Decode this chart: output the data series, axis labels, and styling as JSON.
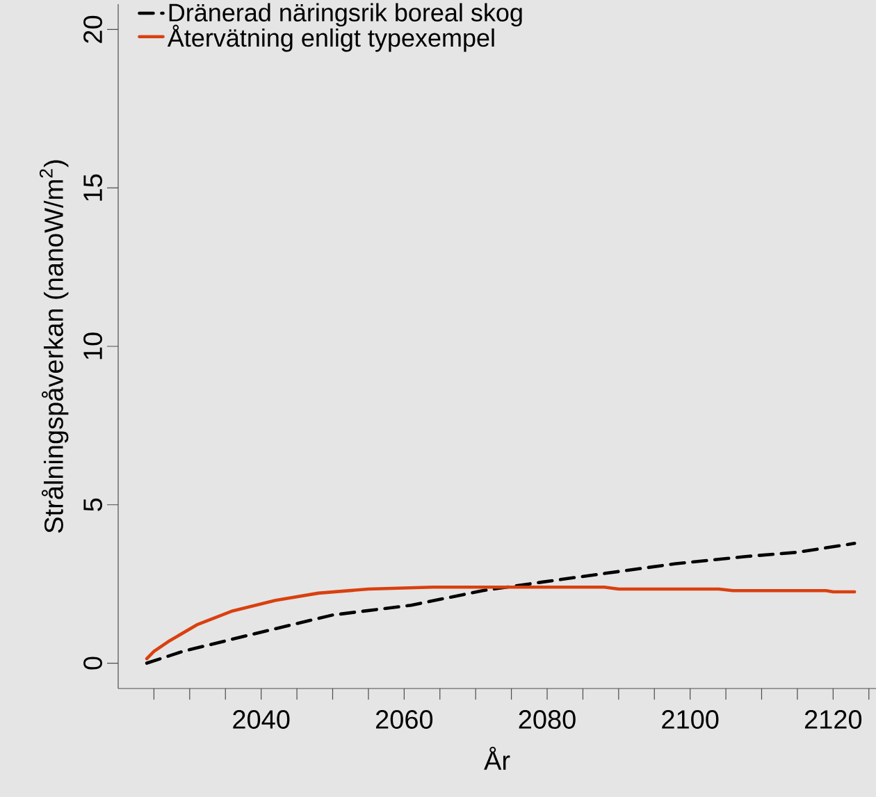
{
  "chart_data": {
    "type": "line",
    "xlabel": "År",
    "ylabel": "Strålningspåverkan (nanoW/m$^{2}$)",
    "xlim": [
      2020,
      2126
    ],
    "ylim": [
      -0.8,
      20.8
    ],
    "xticks": [
      {
        "value": 2025,
        "label": null
      },
      {
        "value": 2030,
        "label": null
      },
      {
        "value": 2035,
        "label": null
      },
      2040,
      {
        "value": 2045,
        "label": null
      },
      {
        "value": 2050,
        "label": null
      },
      {
        "value": 2055,
        "label": null
      },
      2060,
      {
        "value": 2065,
        "label": null
      },
      {
        "value": 2070,
        "label": null
      },
      {
        "value": 2075,
        "label": null
      },
      2080,
      {
        "value": 2085,
        "label": null
      },
      {
        "value": 2090,
        "label": null
      },
      {
        "value": 2095,
        "label": null
      },
      2100,
      {
        "value": 2105,
        "label": null
      },
      {
        "value": 2110,
        "label": null
      },
      {
        "value": 2115,
        "label": null
      },
      2120,
      {
        "value": 2125,
        "label": null
      }
    ],
    "yticks": [
      0,
      5,
      10,
      15,
      20
    ],
    "legend": "top left",
    "grid": false,
    "series": [
      {
        "name": "Dränerad näringsrik boreal skog",
        "color": "#000000",
        "line_style": "dashed",
        "x": [
          2024,
          2029,
          2040,
          2050,
          2061,
          2071,
          2079,
          2087,
          2098,
          2108,
          2115,
          2123
        ],
        "values": [
          0,
          0.37,
          0.98,
          1.52,
          1.83,
          2.29,
          2.55,
          2.8,
          3.14,
          3.37,
          3.5,
          3.78
        ]
      },
      {
        "name": "Återvätning enligt typexempel",
        "color": "#d9400f",
        "line_style": "solid",
        "x": [
          2024,
          2025,
          2027,
          2031,
          2036,
          2042,
          2048,
          2055,
          2064,
          2088,
          2090,
          2104,
          2106,
          2119,
          2120,
          2123
        ],
        "values": [
          0.14,
          0.37,
          0.68,
          1.21,
          1.65,
          1.98,
          2.21,
          2.34,
          2.4,
          2.4,
          2.34,
          2.34,
          2.29,
          2.29,
          2.25,
          2.25
        ]
      }
    ]
  }
}
